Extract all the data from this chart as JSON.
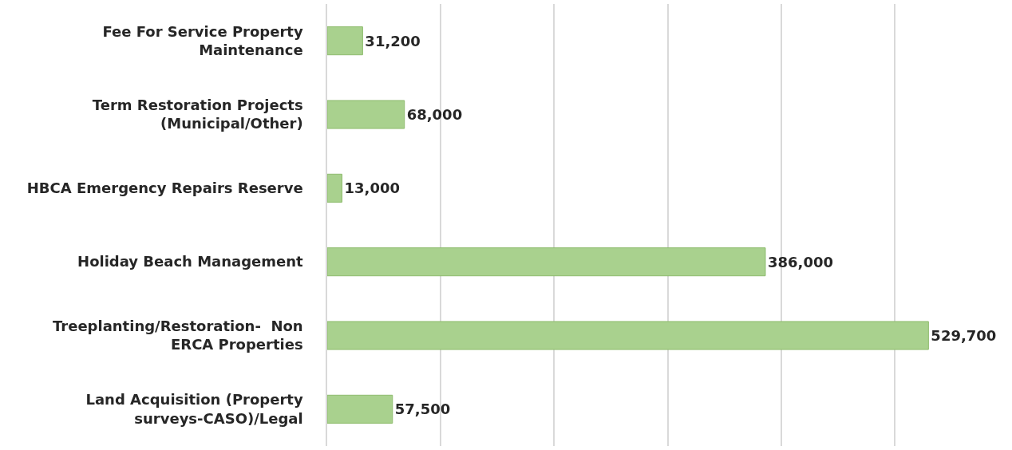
{
  "chart_data": {
    "type": "bar",
    "orientation": "horizontal",
    "categories": [
      "Fee For Service Property Maintenance",
      "Term Restoration Projects (Municipal/Other)",
      "HBCA Emergency Repairs Reserve",
      "Holiday Beach Management",
      "Treeplanting/Restoration-  Non ERCA Properties",
      "Land Acquisition (Property surveys-CASO)/Legal"
    ],
    "values": [
      31200,
      68000,
      13000,
      386000,
      529700,
      57500
    ],
    "color": "#a9d18e",
    "value_labels": [
      "31,200",
      "68,000",
      "13,000",
      "386,000",
      "529,700",
      "57,500"
    ],
    "tick_labels": "y",
    "grid": "x"
  }
}
